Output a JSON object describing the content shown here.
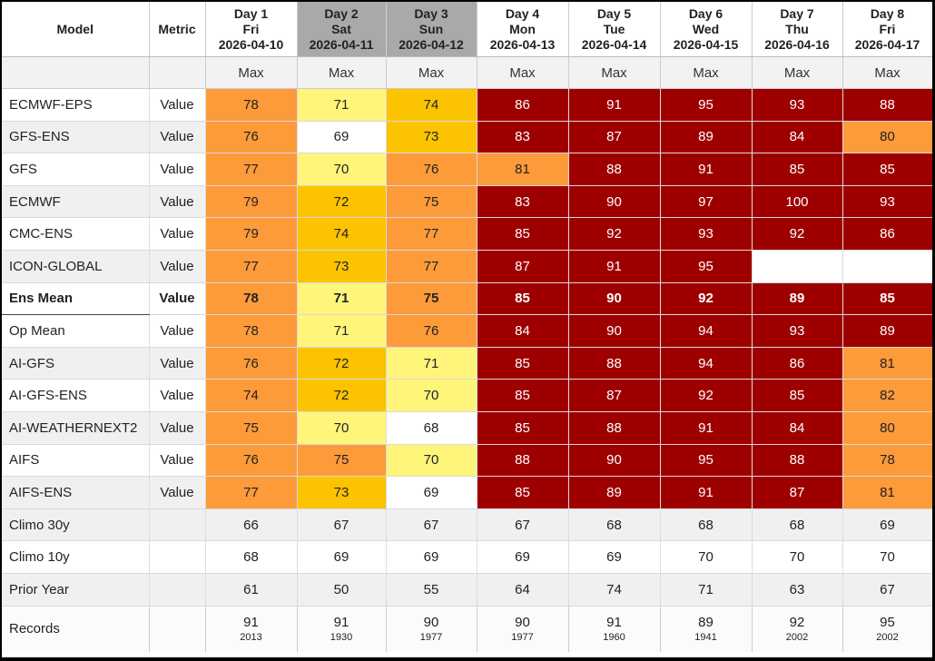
{
  "header": {
    "model": "Model",
    "metric": "Metric",
    "days": [
      {
        "label": "Day 1",
        "dow": "Fri",
        "date": "2026-04-10",
        "weekend": false
      },
      {
        "label": "Day 2",
        "dow": "Sat",
        "date": "2026-04-11",
        "weekend": true
      },
      {
        "label": "Day 3",
        "dow": "Sun",
        "date": "2026-04-12",
        "weekend": true
      },
      {
        "label": "Day 4",
        "dow": "Mon",
        "date": "2026-04-13",
        "weekend": false
      },
      {
        "label": "Day 5",
        "dow": "Tue",
        "date": "2026-04-14",
        "weekend": false
      },
      {
        "label": "Day 6",
        "dow": "Wed",
        "date": "2026-04-15",
        "weekend": false
      },
      {
        "label": "Day 7",
        "dow": "Thu",
        "date": "2026-04-16",
        "weekend": false
      },
      {
        "label": "Day 8",
        "dow": "Fri",
        "date": "2026-04-17",
        "weekend": false
      }
    ],
    "sub_label": "Max"
  },
  "colors": {
    "dark_red": "#9e0000",
    "orange": "#fd9a3a",
    "gold": "#fbc300",
    "light_yellow": "#fff57a",
    "white": "#ffffff",
    "weekend_header": "#a9a9a9"
  },
  "rows": [
    {
      "model": "ECMWF-EPS",
      "metric": "Value",
      "values": [
        "78",
        "71",
        "74",
        "86",
        "91",
        "95",
        "93",
        "88"
      ],
      "cls": [
        "or",
        "ly",
        "go",
        "dr",
        "dr",
        "dr",
        "dr",
        "dr"
      ],
      "shade": false,
      "bold": false
    },
    {
      "model": "GFS-ENS",
      "metric": "Value",
      "values": [
        "76",
        "69",
        "73",
        "83",
        "87",
        "89",
        "84",
        "80"
      ],
      "cls": [
        "or",
        "wh",
        "go",
        "dr",
        "dr",
        "dr",
        "dr",
        "or"
      ],
      "shade": true,
      "bold": false
    },
    {
      "model": "GFS",
      "metric": "Value",
      "values": [
        "77",
        "70",
        "76",
        "81",
        "88",
        "91",
        "85",
        "85"
      ],
      "cls": [
        "or",
        "ly",
        "or",
        "or",
        "dr",
        "dr",
        "dr",
        "dr"
      ],
      "shade": false,
      "bold": false
    },
    {
      "model": "ECMWF",
      "metric": "Value",
      "values": [
        "79",
        "72",
        "75",
        "83",
        "90",
        "97",
        "100",
        "93"
      ],
      "cls": [
        "or",
        "go",
        "or",
        "dr",
        "dr",
        "dr",
        "dr",
        "dr"
      ],
      "shade": true,
      "bold": false
    },
    {
      "model": "CMC-ENS",
      "metric": "Value",
      "values": [
        "79",
        "74",
        "77",
        "85",
        "92",
        "93",
        "92",
        "86"
      ],
      "cls": [
        "or",
        "go",
        "or",
        "dr",
        "dr",
        "dr",
        "dr",
        "dr"
      ],
      "shade": false,
      "bold": false
    },
    {
      "model": "ICON-GLOBAL",
      "metric": "Value",
      "values": [
        "77",
        "73",
        "77",
        "87",
        "91",
        "95",
        "",
        ""
      ],
      "cls": [
        "or",
        "go",
        "or",
        "dr",
        "dr",
        "dr",
        "wh",
        "wh"
      ],
      "shade": true,
      "bold": false
    },
    {
      "model": "Ens Mean",
      "metric": "Value",
      "values": [
        "78",
        "71",
        "75",
        "85",
        "90",
        "92",
        "89",
        "85"
      ],
      "cls": [
        "or",
        "ly",
        "or",
        "dr",
        "dr",
        "dr",
        "dr",
        "dr"
      ],
      "shade": false,
      "bold": true
    },
    {
      "model": "Op Mean",
      "metric": "Value",
      "values": [
        "78",
        "71",
        "76",
        "84",
        "90",
        "94",
        "93",
        "89"
      ],
      "cls": [
        "or",
        "ly",
        "or",
        "dr",
        "dr",
        "dr",
        "dr",
        "dr"
      ],
      "shade": false,
      "bold": false
    },
    {
      "model": "AI-GFS",
      "metric": "Value",
      "values": [
        "76",
        "72",
        "71",
        "85",
        "88",
        "94",
        "86",
        "81"
      ],
      "cls": [
        "or",
        "go",
        "ly",
        "dr",
        "dr",
        "dr",
        "dr",
        "or"
      ],
      "shade": true,
      "bold": false
    },
    {
      "model": "AI-GFS-ENS",
      "metric": "Value",
      "values": [
        "74",
        "72",
        "70",
        "85",
        "87",
        "92",
        "85",
        "82"
      ],
      "cls": [
        "or",
        "go",
        "ly",
        "dr",
        "dr",
        "dr",
        "dr",
        "or"
      ],
      "shade": false,
      "bold": false
    },
    {
      "model": "AI-WEATHERNEXT2",
      "metric": "Value",
      "values": [
        "75",
        "70",
        "68",
        "85",
        "88",
        "91",
        "84",
        "80"
      ],
      "cls": [
        "or",
        "ly",
        "wh",
        "dr",
        "dr",
        "dr",
        "dr",
        "or"
      ],
      "shade": true,
      "bold": false
    },
    {
      "model": "AIFS",
      "metric": "Value",
      "values": [
        "76",
        "75",
        "70",
        "88",
        "90",
        "95",
        "88",
        "78"
      ],
      "cls": [
        "or",
        "or",
        "ly",
        "dr",
        "dr",
        "dr",
        "dr",
        "or"
      ],
      "shade": false,
      "bold": false
    },
    {
      "model": "AIFS-ENS",
      "metric": "Value",
      "values": [
        "77",
        "73",
        "69",
        "85",
        "89",
        "91",
        "87",
        "81"
      ],
      "cls": [
        "or",
        "go",
        "wh",
        "dr",
        "dr",
        "dr",
        "dr",
        "or"
      ],
      "shade": true,
      "bold": false
    }
  ],
  "climo": [
    {
      "model": "Climo 30y",
      "values": [
        "66",
        "67",
        "67",
        "67",
        "68",
        "68",
        "68",
        "69"
      ],
      "shade": true
    },
    {
      "model": "Climo 10y",
      "values": [
        "68",
        "69",
        "69",
        "69",
        "69",
        "70",
        "70",
        "70"
      ],
      "shade": false
    },
    {
      "model": "Prior Year",
      "values": [
        "61",
        "50",
        "55",
        "64",
        "74",
        "71",
        "63",
        "67"
      ],
      "shade": true
    }
  ],
  "records": {
    "model": "Records",
    "values": [
      "91",
      "91",
      "90",
      "90",
      "91",
      "89",
      "92",
      "95"
    ],
    "years": [
      "2013",
      "1930",
      "1977",
      "1977",
      "1960",
      "1941",
      "2002",
      "2002"
    ]
  }
}
